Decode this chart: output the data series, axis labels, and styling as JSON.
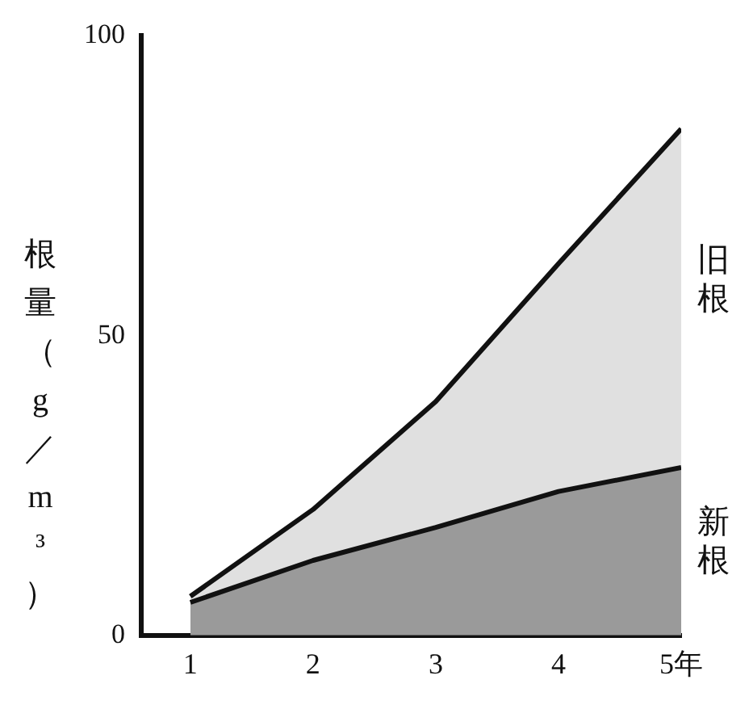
{
  "chart_data": {
    "type": "area",
    "ylabel": "根量（g／m³）",
    "x": [
      1,
      2,
      3,
      4,
      5
    ],
    "stacked": true,
    "series": [
      {
        "name": "新根",
        "color": "#9a9a9a",
        "values": [
          5.5,
          12.5,
          18,
          24,
          28
        ]
      },
      {
        "name": "旧根",
        "color": "#e0e0e0",
        "values": [
          1,
          8.5,
          21,
          38,
          56.5
        ]
      }
    ],
    "xlim": [
      0.6,
      5
    ],
    "xticks": [
      1,
      2,
      3,
      4,
      {
        "value": 5,
        "label": "5年"
      }
    ],
    "ylim": [
      0,
      100
    ],
    "yticks": [
      0,
      50,
      100
    ],
    "grid": false,
    "legend": false
  }
}
